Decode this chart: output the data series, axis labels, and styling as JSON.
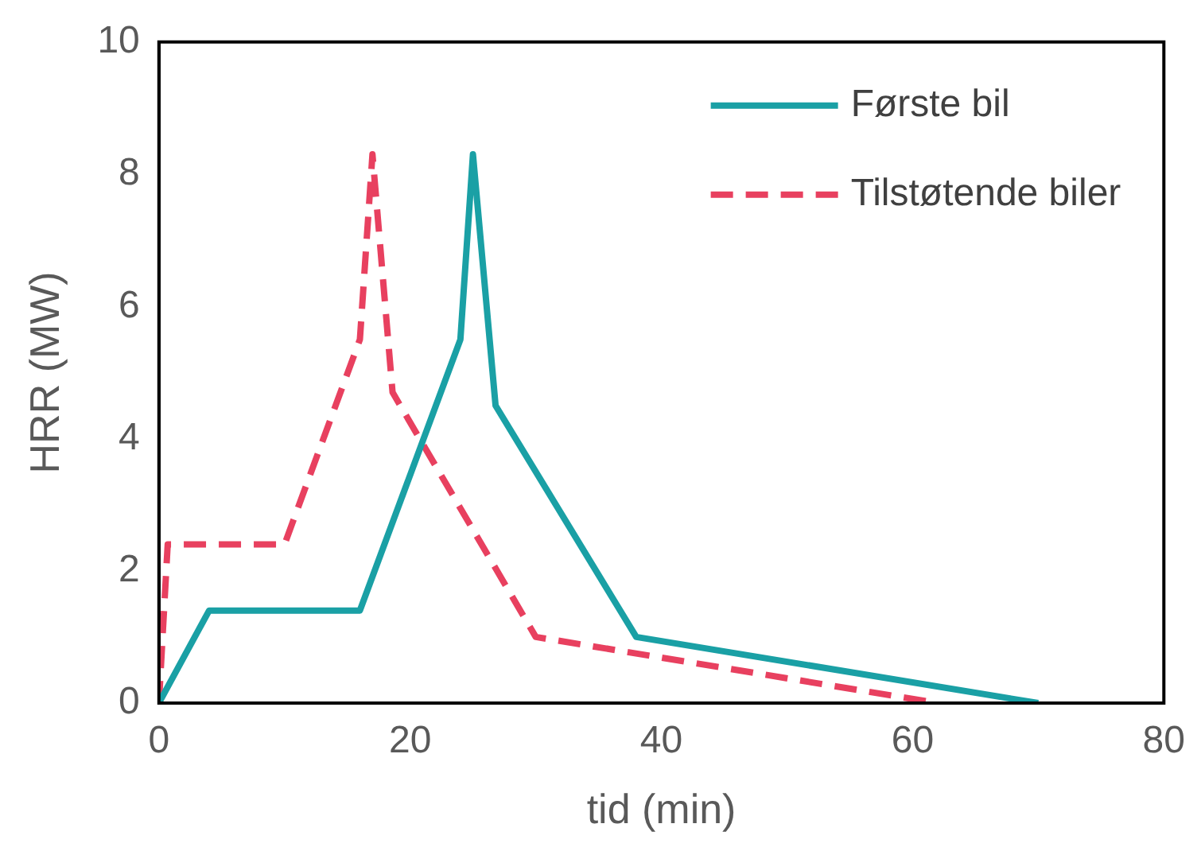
{
  "chart_data": {
    "type": "line",
    "xlabel": "tid (min)",
    "ylabel": "HRR (MW)",
    "xlim": [
      0,
      80
    ],
    "xticks": [
      0,
      20,
      40,
      60,
      80
    ],
    "ylim": [
      0,
      10
    ],
    "yticks": [
      0,
      2,
      4,
      6,
      8,
      10
    ],
    "grid": false,
    "legend": "top right",
    "marker": "none",
    "series": [
      {
        "name": "Første bil",
        "color": "#1aa0a5",
        "line_style": "solid",
        "x": [
          0,
          4,
          16,
          24,
          25,
          26.8,
          38,
          70
        ],
        "values": [
          0,
          1.4,
          1.4,
          5.5,
          8.3,
          4.5,
          1.0,
          0
        ]
      },
      {
        "name": "Tilstøtende biler",
        "color": "#e8405f",
        "line_style": "dashed",
        "x": [
          0,
          0.7,
          10,
          16,
          17,
          18.6,
          30,
          62
        ],
        "values": [
          0,
          2.4,
          2.4,
          5.5,
          8.3,
          4.7,
          1.0,
          0
        ]
      }
    ]
  }
}
